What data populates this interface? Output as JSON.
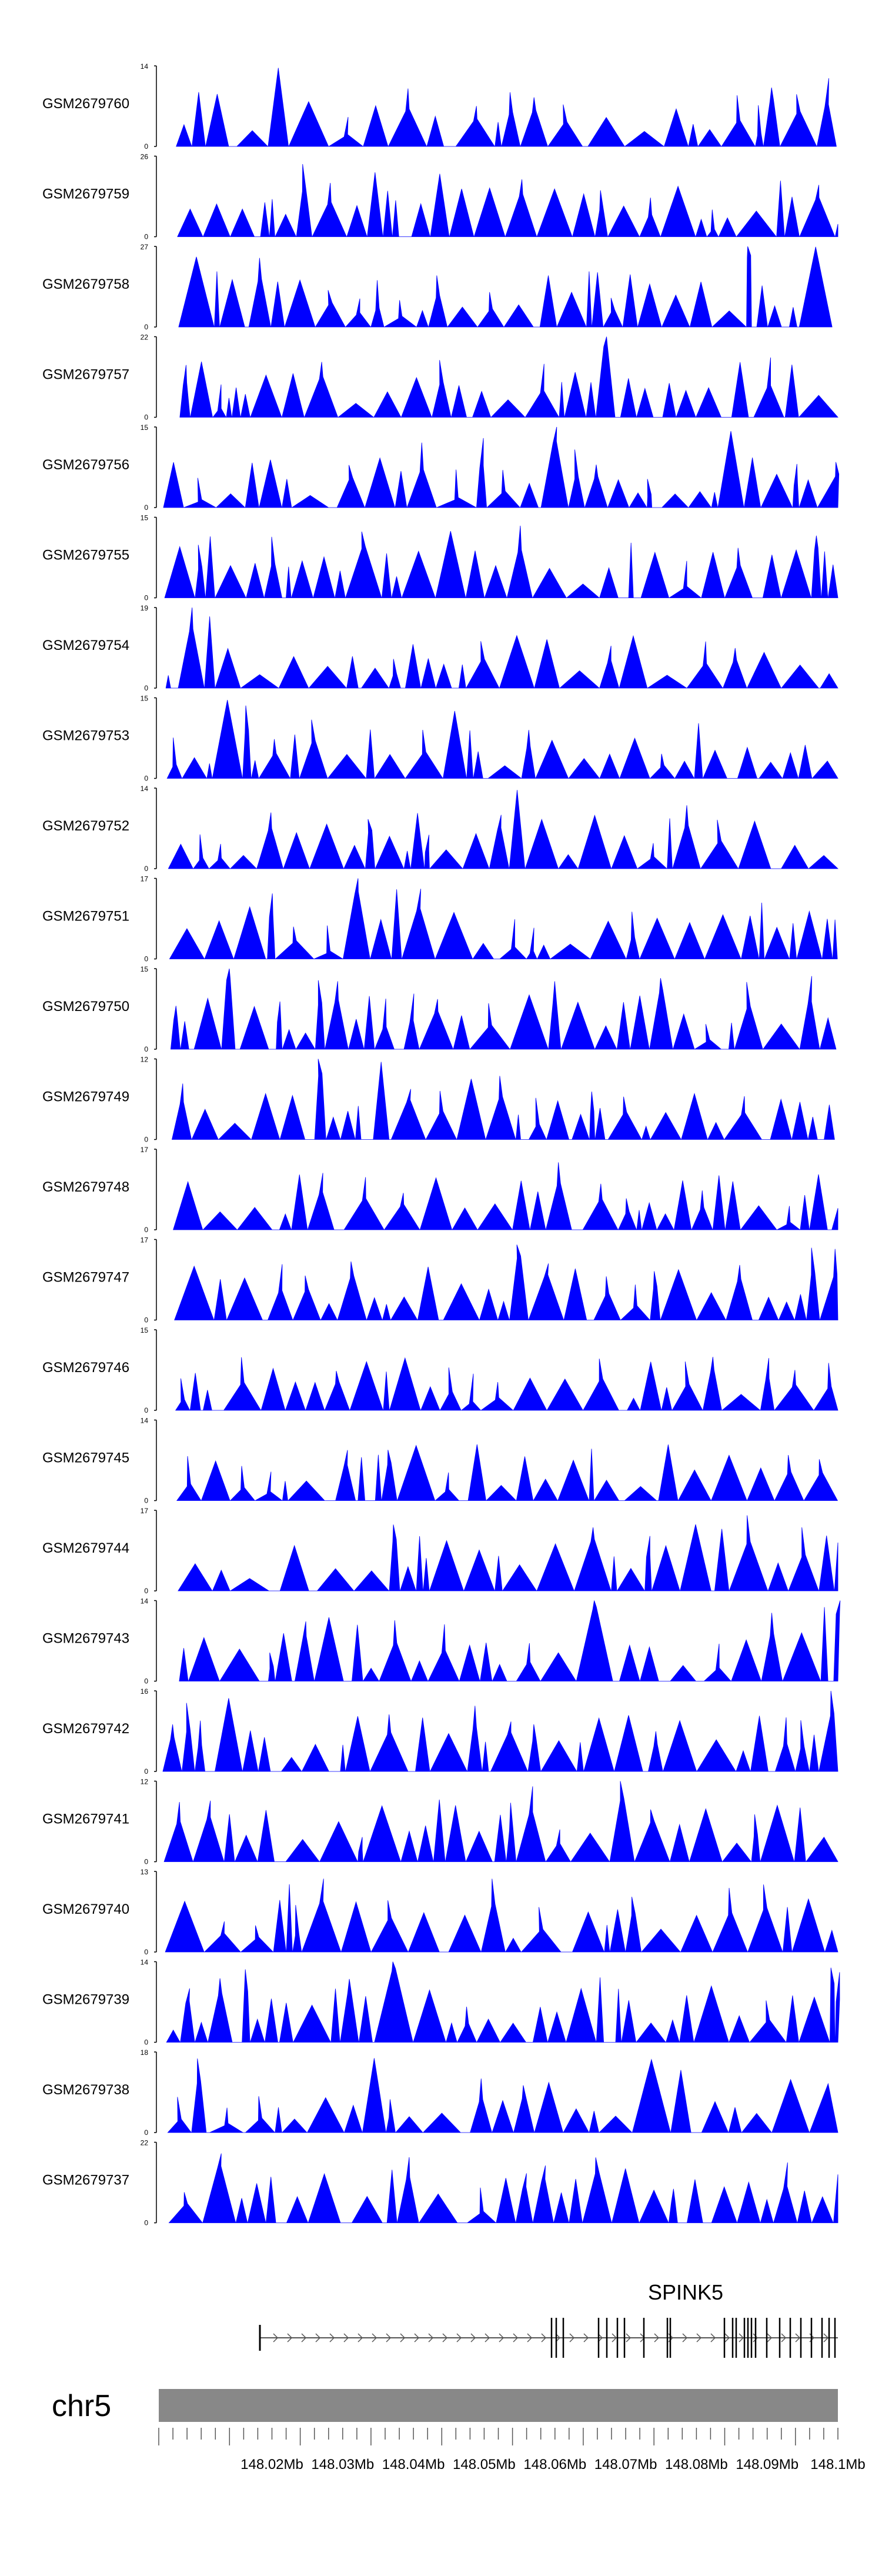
{
  "chart_data": {
    "type": "area",
    "title": "",
    "chromosome": "chr5",
    "gene": "SPINK5",
    "xrange": [
      148.004,
      148.1
    ],
    "x_ticks": [
      "148.02Mb",
      "148.03Mb",
      "148.04Mb",
      "148.05Mb",
      "148.06Mb",
      "148.07Mb",
      "148.08Mb",
      "148.09Mb",
      "148.1Mb"
    ],
    "x_tick_values": [
      148.02,
      148.03,
      148.04,
      148.05,
      148.06,
      148.07,
      148.08,
      148.09,
      148.1
    ],
    "series_color": "#0000ff",
    "series": [
      {
        "name": "GSM2679760",
        "ymax": 14
      },
      {
        "name": "GSM2679759",
        "ymax": 26
      },
      {
        "name": "GSM2679758",
        "ymax": 27
      },
      {
        "name": "GSM2679757",
        "ymax": 22
      },
      {
        "name": "GSM2679756",
        "ymax": 15
      },
      {
        "name": "GSM2679755",
        "ymax": 15
      },
      {
        "name": "GSM2679754",
        "ymax": 19
      },
      {
        "name": "GSM2679753",
        "ymax": 15
      },
      {
        "name": "GSM2679752",
        "ymax": 14
      },
      {
        "name": "GSM2679751",
        "ymax": 17
      },
      {
        "name": "GSM2679750",
        "ymax": 15
      },
      {
        "name": "GSM2679749",
        "ymax": 12
      },
      {
        "name": "GSM2679748",
        "ymax": 17
      },
      {
        "name": "GSM2679747",
        "ymax": 17
      },
      {
        "name": "GSM2679746",
        "ymax": 15
      },
      {
        "name": "GSM2679745",
        "ymax": 14
      },
      {
        "name": "GSM2679744",
        "ymax": 17
      },
      {
        "name": "GSM2679743",
        "ymax": 14
      },
      {
        "name": "GSM2679742",
        "ymax": 16
      },
      {
        "name": "GSM2679741",
        "ymax": 12
      },
      {
        "name": "GSM2679740",
        "ymax": 13
      },
      {
        "name": "GSM2679739",
        "ymax": 14
      },
      {
        "name": "GSM2679738",
        "ymax": 18
      },
      {
        "name": "GSM2679737",
        "ymax": 22
      }
    ],
    "y_min_label": "0"
  }
}
